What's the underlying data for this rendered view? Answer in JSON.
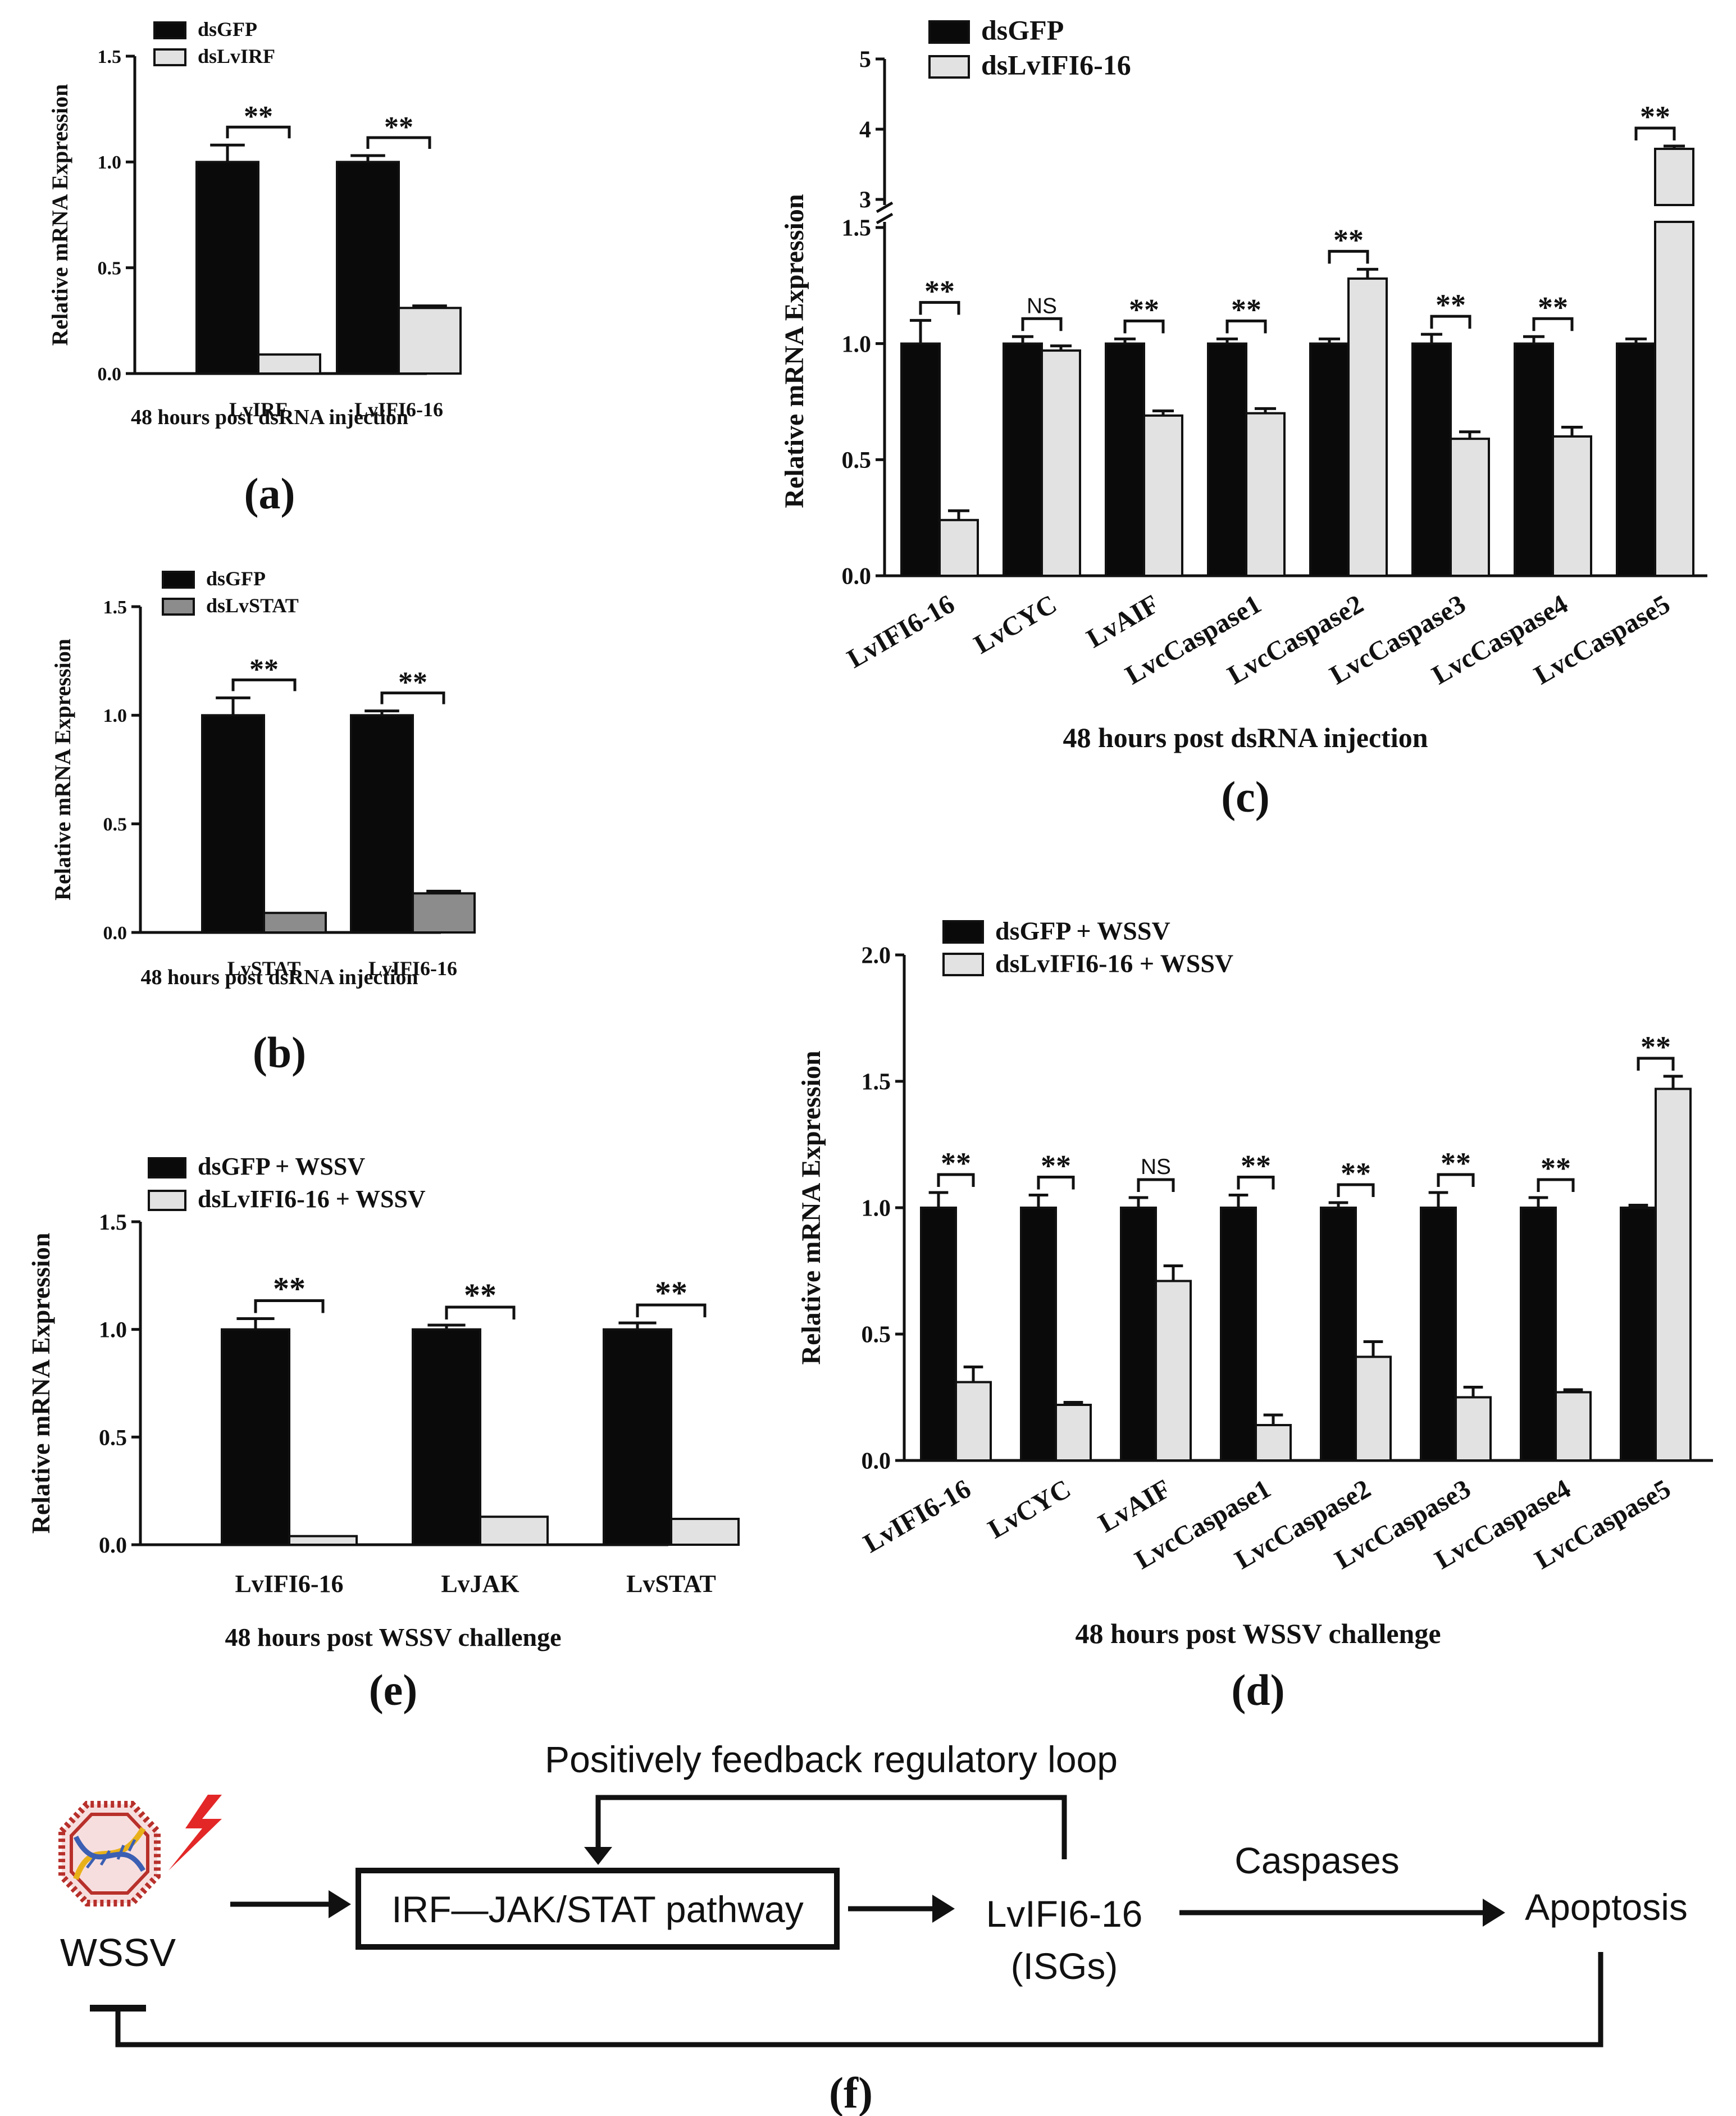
{
  "colors": {
    "black_bar": "#0a0a0a",
    "light_bar": "#e2e2e2",
    "gray_bar": "#8c8c8c",
    "axis": "#111111",
    "virus_red": "#b8302b",
    "dna_yellow": "#e8b11a",
    "dna_blue": "#3b5fb3",
    "lightning_red": "#e32727"
  },
  "chart_data": [
    {
      "id": "a",
      "type": "bar",
      "panel_label": "(a)",
      "ylabel": "Relative mRNA Expression",
      "xlabel": "48 hours post dsRNA injection",
      "ylim": [
        0,
        1.5
      ],
      "yticks": [
        "0.0",
        "0.5",
        "1.0",
        "1.5"
      ],
      "categories": [
        "LvIRF",
        "LvIFI6-16"
      ],
      "series": [
        {
          "name": "dsGFP",
          "color": "#0a0a0a",
          "values": [
            1.0,
            1.0
          ],
          "errors": [
            0.08,
            0.03
          ]
        },
        {
          "name": "dsLvIRF",
          "color": "#e2e2e2",
          "values": [
            0.09,
            0.31
          ],
          "errors": [
            0.0,
            0.01
          ]
        }
      ],
      "significance": [
        "**",
        "**"
      ]
    },
    {
      "id": "b",
      "type": "bar",
      "panel_label": "(b)",
      "ylabel": "Relative mRNA Expression",
      "xlabel": "48 hours post dsRNA injection",
      "ylim": [
        0,
        1.5
      ],
      "yticks": [
        "0.0",
        "0.5",
        "1.0",
        "1.5"
      ],
      "categories": [
        "LvSTAT",
        "LvIFI6-16"
      ],
      "series": [
        {
          "name": "dsGFP",
          "color": "#0a0a0a",
          "values": [
            1.0,
            1.0
          ],
          "errors": [
            0.08,
            0.02
          ]
        },
        {
          "name": "dsLvSTAT",
          "color": "#8c8c8c",
          "values": [
            0.09,
            0.18
          ],
          "errors": [
            0.0,
            0.01
          ]
        }
      ],
      "significance": [
        "**",
        "**"
      ]
    },
    {
      "id": "c",
      "type": "bar",
      "panel_label": "(c)",
      "ylabel": "Relative mRNA Expression",
      "xlabel": "48 hours post dsRNA injection",
      "ylim": [
        0,
        5
      ],
      "axis_break": [
        1.5,
        3
      ],
      "yticks_lower": [
        "0.0",
        "0.5",
        "1.0",
        "1.5"
      ],
      "yticks_upper": [
        "3",
        "4",
        "5"
      ],
      "categories": [
        "LvIFI6-16",
        "LvCYC",
        "LvAIF",
        "LvcCaspase1",
        "LvcCaspase2",
        "LvcCaspase3",
        "LvcCaspase4",
        "LvcCaspase5"
      ],
      "series": [
        {
          "name": "dsGFP",
          "color": "#0a0a0a",
          "values": [
            1.0,
            1.0,
            1.0,
            1.0,
            1.0,
            1.0,
            1.0,
            1.0
          ],
          "errors": [
            0.1,
            0.03,
            0.02,
            0.02,
            0.02,
            0.04,
            0.03,
            0.02
          ]
        },
        {
          "name": "dsLvIFI6-16",
          "color": "#e2e2e2",
          "values": [
            0.24,
            0.97,
            0.69,
            0.7,
            1.28,
            0.59,
            0.6,
            3.72
          ],
          "errors": [
            0.04,
            0.02,
            0.02,
            0.02,
            0.04,
            0.03,
            0.04,
            0.04
          ]
        }
      ],
      "significance": [
        "**",
        "NS",
        "**",
        "**",
        "**",
        "**",
        "**",
        "**"
      ]
    },
    {
      "id": "d",
      "type": "bar",
      "panel_label": "(d)",
      "ylabel": "Relative mRNA Expression",
      "xlabel": "48 hours post WSSV challenge",
      "ylim": [
        0,
        2.0
      ],
      "yticks": [
        "0.0",
        "0.5",
        "1.0",
        "1.5",
        "2.0"
      ],
      "categories": [
        "LvIFI6-16",
        "LvCYC",
        "LvAIF",
        "LvcCaspase1",
        "LvcCaspase2",
        "LvcCaspase3",
        "LvcCaspase4",
        "LvcCaspase5"
      ],
      "series": [
        {
          "name": "dsGFP + WSSV",
          "color": "#0a0a0a",
          "values": [
            1.0,
            1.0,
            1.0,
            1.0,
            1.0,
            1.0,
            1.0,
            1.0
          ],
          "errors": [
            0.06,
            0.05,
            0.04,
            0.05,
            0.02,
            0.06,
            0.04,
            0.01
          ]
        },
        {
          "name": "dsLvIFI6-16 + WSSV",
          "color": "#e2e2e2",
          "values": [
            0.31,
            0.22,
            0.71,
            0.14,
            0.41,
            0.25,
            0.27,
            1.47
          ],
          "errors": [
            0.06,
            0.01,
            0.06,
            0.04,
            0.06,
            0.04,
            0.01,
            0.05
          ]
        }
      ],
      "significance": [
        "**",
        "**",
        "NS",
        "**",
        "**",
        "**",
        "**",
        "**"
      ]
    },
    {
      "id": "e",
      "type": "bar",
      "panel_label": "(e)",
      "ylabel": "Relative mRNA Expression",
      "xlabel": "48 hours post WSSV challenge",
      "ylim": [
        0,
        1.5
      ],
      "yticks": [
        "0.0",
        "0.5",
        "1.0",
        "1.5"
      ],
      "categories": [
        "LvIFI6-16",
        "LvJAK",
        "LvSTAT"
      ],
      "series": [
        {
          "name": "dsGFP + WSSV",
          "color": "#0a0a0a",
          "values": [
            1.0,
            1.0,
            1.0
          ],
          "errors": [
            0.05,
            0.02,
            0.03
          ]
        },
        {
          "name": "dsLvIFI6-16 + WSSV",
          "color": "#e2e2e2",
          "values": [
            0.04,
            0.13,
            0.12
          ],
          "errors": [
            0.0,
            0.0,
            0.0
          ]
        }
      ],
      "significance": [
        "**",
        "**",
        "**"
      ]
    }
  ],
  "diagram": {
    "panel_label": "(f)",
    "loop_label": "Positively feedback regulatory loop",
    "virus_label": "WSSV",
    "pathway_label": "IRF—JAK/STAT pathway",
    "gene_label": "LvIFI6-16",
    "gene_sublabel": "(ISGs)",
    "edge_label": "Caspases",
    "outcome_label": "Apoptosis",
    "virus_icon": "wssv-virion-icon",
    "lightning_icon": "lightning-bolt-icon"
  }
}
